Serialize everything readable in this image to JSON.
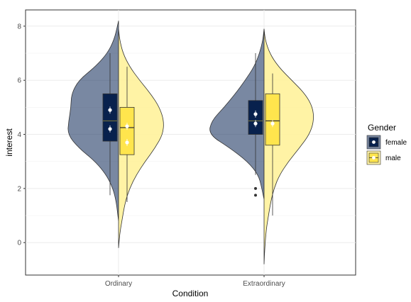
{
  "chart_data": {
    "type": "split-violin-box",
    "xlabel": "Condition",
    "ylabel": "interest",
    "categories": [
      "Ordinary",
      "Extraordinary"
    ],
    "ylim": [
      -1.2,
      8.6
    ],
    "yticks": [
      0,
      2,
      4,
      6,
      8
    ],
    "grid": true,
    "legend": {
      "title": "Gender",
      "position": "right",
      "entries": [
        "female",
        "male"
      ]
    },
    "series": [
      {
        "name": "female",
        "color": "#1f3864",
        "box_color": "#08214d",
        "groups": [
          {
            "category": "Ordinary",
            "box": {
              "q1": 3.75,
              "median": 4.5,
              "q3": 5.5,
              "whisker_low": 1.75,
              "whisker_high": 7.0
            },
            "mean_points": [
              4.9,
              4.2
            ],
            "outliers": [],
            "violin": {
              "y": [
                0.8,
                1.5,
                2.0,
                2.5,
                3.0,
                3.5,
                4.0,
                4.5,
                5.0,
                5.5,
                6.0,
                6.5,
                7.0,
                7.5,
                8.0,
                8.2
              ],
              "width": [
                0.0,
                0.04,
                0.1,
                0.22,
                0.42,
                0.72,
                0.92,
                0.9,
                0.86,
                0.85,
                0.72,
                0.42,
                0.2,
                0.08,
                0.02,
                0.0
              ]
            }
          },
          {
            "category": "Extraordinary",
            "box": {
              "q1": 4.0,
              "median": 4.5,
              "q3": 5.25,
              "whisker_low": 2.5,
              "whisker_high": 7.0
            },
            "mean_points": [
              4.75,
              4.4
            ],
            "outliers": [
              2.0,
              1.75
            ],
            "violin": {
              "y": [
                1.6,
                2.0,
                2.5,
                3.0,
                3.5,
                4.0,
                4.5,
                5.0,
                5.5,
                6.0,
                6.5,
                7.0,
                7.5,
                7.9
              ],
              "width": [
                0.0,
                0.04,
                0.1,
                0.3,
                0.62,
                1.0,
                0.95,
                0.72,
                0.52,
                0.34,
                0.18,
                0.08,
                0.02,
                0.0
              ]
            }
          }
        ]
      },
      {
        "name": "male",
        "color": "#fff29b",
        "box_color": "#ffe54d",
        "groups": [
          {
            "category": "Ordinary",
            "box": {
              "q1": 3.25,
              "median": 4.25,
              "q3": 5.0,
              "whisker_low": 1.5,
              "whisker_high": 6.5
            },
            "mean_points": [
              4.3,
              3.7
            ],
            "outliers": [],
            "violin": {
              "y": [
                -0.2,
                0.3,
                0.8,
                1.5,
                2.0,
                2.5,
                3.0,
                3.5,
                4.0,
                4.5,
                5.0,
                5.5,
                6.0,
                6.5,
                7.0,
                7.5,
                7.9
              ],
              "width": [
                0.0,
                0.02,
                0.06,
                0.12,
                0.2,
                0.32,
                0.48,
                0.66,
                0.8,
                0.82,
                0.74,
                0.58,
                0.38,
                0.2,
                0.08,
                0.02,
                0.0
              ]
            }
          },
          {
            "category": "Extraordinary",
            "box": {
              "q1": 3.6,
              "median": 4.5,
              "q3": 5.5,
              "whisker_low": 1.0,
              "whisker_high": 6.25
            },
            "mean_points": [
              4.4
            ],
            "outliers": [],
            "violin": {
              "y": [
                -0.8,
                -0.3,
                0.5,
                1.0,
                1.5,
                2.0,
                2.5,
                3.0,
                3.5,
                4.0,
                4.5,
                5.0,
                5.5,
                6.0,
                6.5,
                7.0,
                7.5,
                7.9
              ],
              "width": [
                0.0,
                0.01,
                0.04,
                0.08,
                0.12,
                0.18,
                0.28,
                0.44,
                0.64,
                0.82,
                0.9,
                0.88,
                0.74,
                0.5,
                0.26,
                0.1,
                0.02,
                0.0
              ]
            }
          }
        ]
      }
    ]
  }
}
